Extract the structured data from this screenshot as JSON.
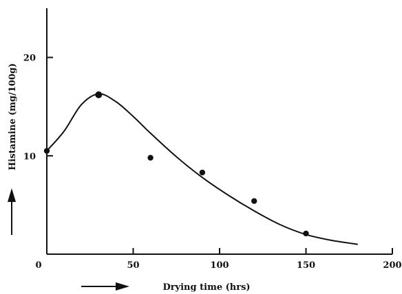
{
  "chart_data": {
    "type": "scatter",
    "xlabel": "Drying time (hrs)",
    "ylabel": "Histamine (mg/100g)",
    "xlim": [
      0,
      200
    ],
    "ylim": [
      0,
      25
    ],
    "x_ticks": [
      "0",
      "50",
      "100",
      "150",
      "200"
    ],
    "y_ticks": [
      "10",
      "20"
    ],
    "grid": false,
    "series": [
      {
        "kind": "points",
        "x": [
          0,
          30,
          60,
          90,
          120,
          150
        ],
        "y": [
          10.5,
          16.2,
          9.8,
          8.3,
          5.4,
          2.1
        ]
      },
      {
        "kind": "fitted-curve",
        "x": [
          0,
          10,
          20,
          30,
          40,
          50,
          60,
          75,
          90,
          105,
          120,
          135,
          150,
          165,
          180
        ],
        "y": [
          10.5,
          12.5,
          15.2,
          16.3,
          15.5,
          14.0,
          12.3,
          9.9,
          7.8,
          6.0,
          4.4,
          3.0,
          2.0,
          1.4,
          1.0
        ]
      }
    ],
    "colors": {
      "ink": "#111111"
    }
  }
}
